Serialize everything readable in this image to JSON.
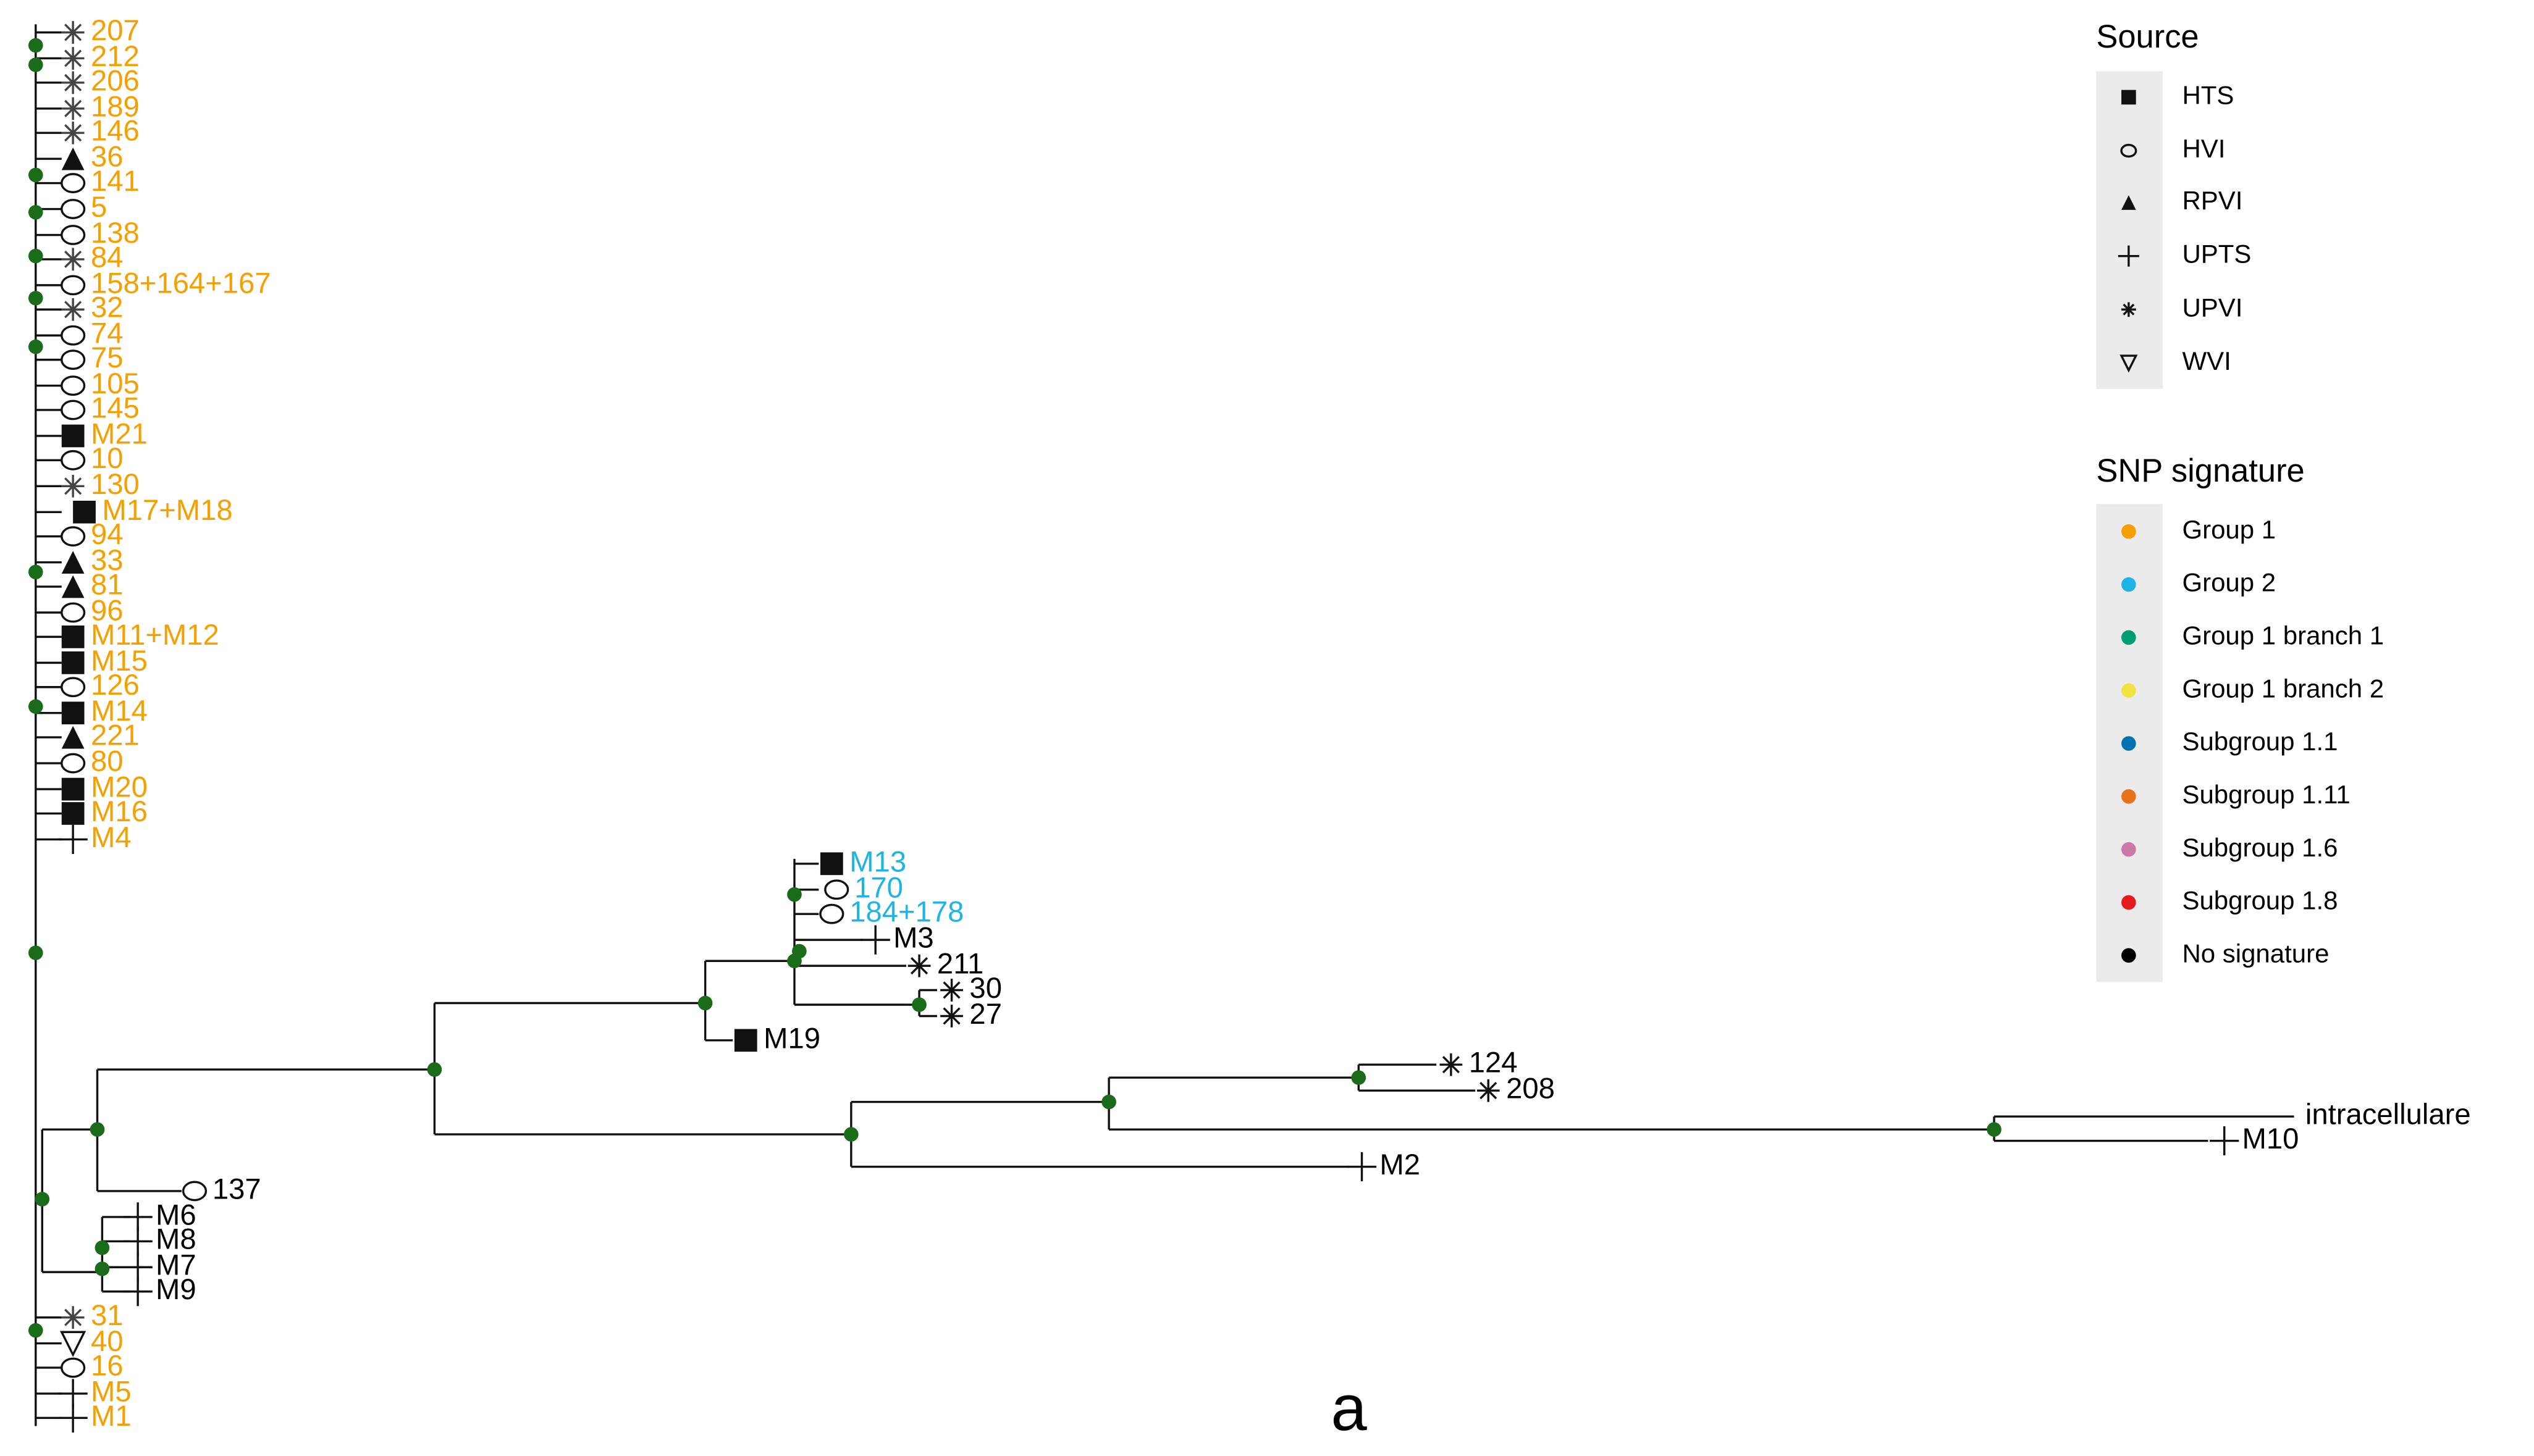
{
  "leaves": [
    "207",
    "212",
    "206",
    "189",
    "146",
    "36",
    "141",
    "5",
    "138",
    "84",
    "158+164+167",
    "32",
    "74",
    "75",
    "105",
    "145",
    "M21",
    "10",
    "130",
    "M17+M18",
    "94",
    "33",
    "81",
    "96",
    "M11+M12",
    "M15",
    "126",
    "M14",
    "221",
    "80",
    "M20",
    "M16",
    "M4",
    "M13",
    "170",
    "184+178",
    "M3",
    "211",
    "30",
    "27",
    "M19",
    "124",
    "208",
    "intracellulare",
    "M10",
    "M2",
    "137",
    "M6",
    "M8",
    "M7",
    "M9",
    "31",
    "40",
    "16",
    "M5",
    "M1"
  ],
  "legends": [
    {
      "title": "Source",
      "items": [
        {
          "label": "HTS"
        },
        {
          "label": "HVI"
        },
        {
          "label": "RPVI"
        },
        {
          "label": "UPTS"
        },
        {
          "label": "UPVI"
        },
        {
          "label": "WVI"
        }
      ]
    },
    {
      "title": "SNP signature",
      "items": [
        {
          "label": "Group 1",
          "color": "#f5a000"
        },
        {
          "label": "Group 2",
          "color": "#1fb4e6"
        },
        {
          "label": "Group 1 branch 1",
          "color": "#009e73"
        },
        {
          "label": "Group 1 branch 2",
          "color": "#f0e442"
        },
        {
          "label": "Subgroup 1.1",
          "color": "#0072b2"
        },
        {
          "label": "Subgroup 1.11",
          "color": "#e6731a"
        },
        {
          "label": "Subgroup 1.6",
          "color": "#cc79a7"
        },
        {
          "label": "Subgroup 1.8",
          "color": "#e41a1c"
        },
        {
          "label": "No signature",
          "color": "#000000"
        }
      ]
    }
  ],
  "panel_label": "a"
}
